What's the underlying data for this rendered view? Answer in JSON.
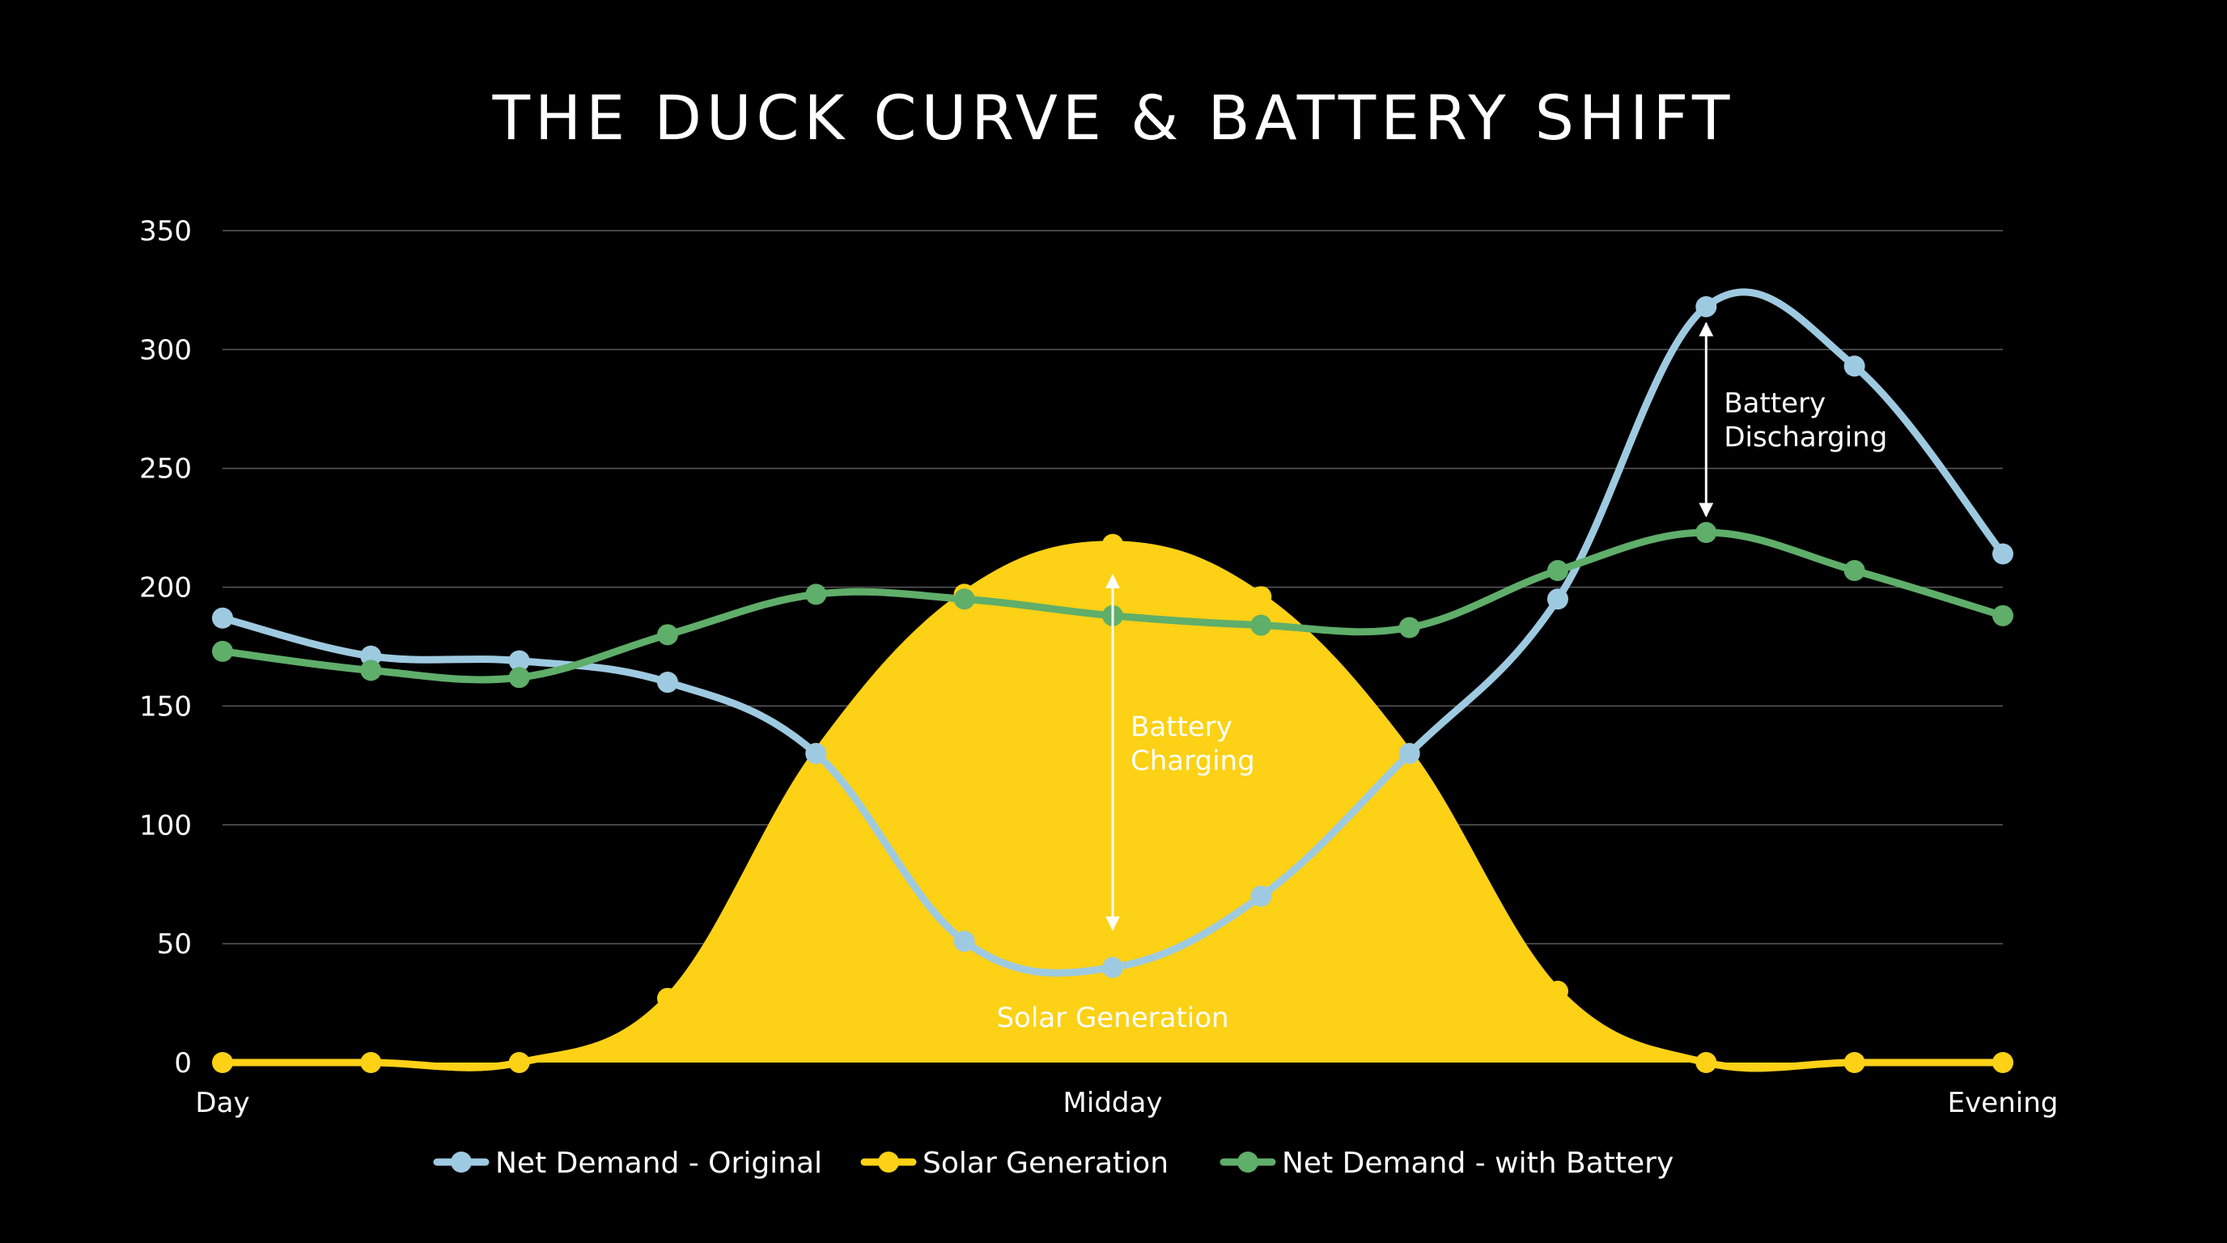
{
  "chart_data": {
    "type": "line",
    "title": "THE DUCK CURVE & BATTERY SHIFT",
    "xlabel": "",
    "ylabel": "",
    "ylim": [
      0,
      350
    ],
    "yticks": [
      0,
      50,
      100,
      150,
      200,
      250,
      300,
      350
    ],
    "xtick_labels": [
      "Day",
      "Midday",
      "Evening"
    ],
    "grid": true,
    "legend_position": "bottom",
    "series": [
      {
        "name": "Net Demand - Original",
        "color": "#9ecae1",
        "values": [
          187,
          171,
          169,
          160,
          130,
          51,
          40,
          70,
          130,
          195,
          318,
          293,
          214
        ]
      },
      {
        "name": "Solar Generation",
        "color": "#fcd116",
        "fill": true,
        "values": [
          0,
          0,
          0,
          27,
          130,
          197,
          218,
          196,
          130,
          30,
          0,
          0,
          0
        ]
      },
      {
        "name": "Net Demand - with Battery",
        "color": "#5fae6a",
        "values": [
          173,
          165,
          162,
          180,
          197,
          195,
          188,
          184,
          183,
          207,
          223,
          207,
          188
        ]
      }
    ],
    "annotations": [
      {
        "id": "charging",
        "lines": [
          "Battery",
          "Charging"
        ],
        "x_index": 6,
        "y_from": 56,
        "y_to": 205
      },
      {
        "id": "discharging",
        "lines": [
          "Battery",
          "Discharging"
        ],
        "x_index": 10,
        "y_from": 230,
        "y_to": 311
      },
      {
        "id": "solar",
        "text": "Solar Generation",
        "x_index": 6,
        "y": 15
      }
    ]
  }
}
